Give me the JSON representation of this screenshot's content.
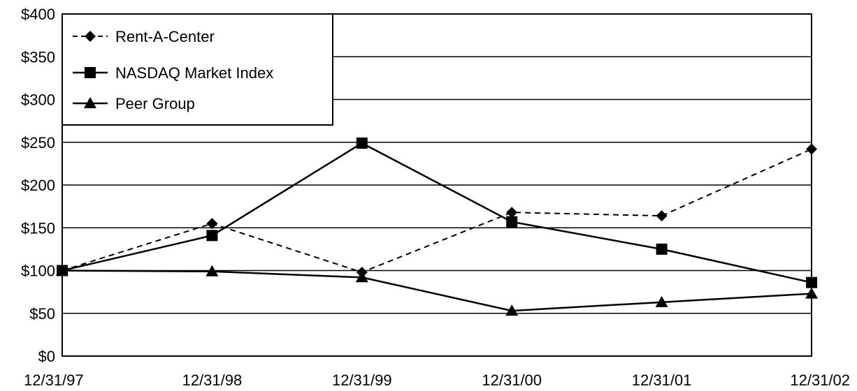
{
  "chart_data": {
    "type": "line",
    "categories": [
      "12/31/97",
      "12/31/98",
      "12/31/99",
      "12/31/00",
      "12/31/01",
      "12/31/02"
    ],
    "y_ticks": [
      "$0",
      "$50",
      "$100",
      "$150",
      "$200",
      "$250",
      "$300",
      "$350",
      "$400"
    ],
    "ylim": [
      0,
      400
    ],
    "grid": "horizontal",
    "legend_position": "top-left",
    "series": [
      {
        "name": "Rent-A-Center",
        "values": [
          100,
          155,
          98,
          168,
          164,
          242
        ],
        "marker": "diamond",
        "line_style": "dashed",
        "color": "#000000"
      },
      {
        "name": "NASDAQ Market Index",
        "values": [
          100,
          141,
          249,
          157,
          125,
          86
        ],
        "marker": "square",
        "line_style": "solid",
        "color": "#000000"
      },
      {
        "name": "Peer Group",
        "values": [
          100,
          99,
          92,
          53,
          63,
          73
        ],
        "marker": "triangle",
        "line_style": "solid",
        "color": "#000000"
      }
    ]
  }
}
